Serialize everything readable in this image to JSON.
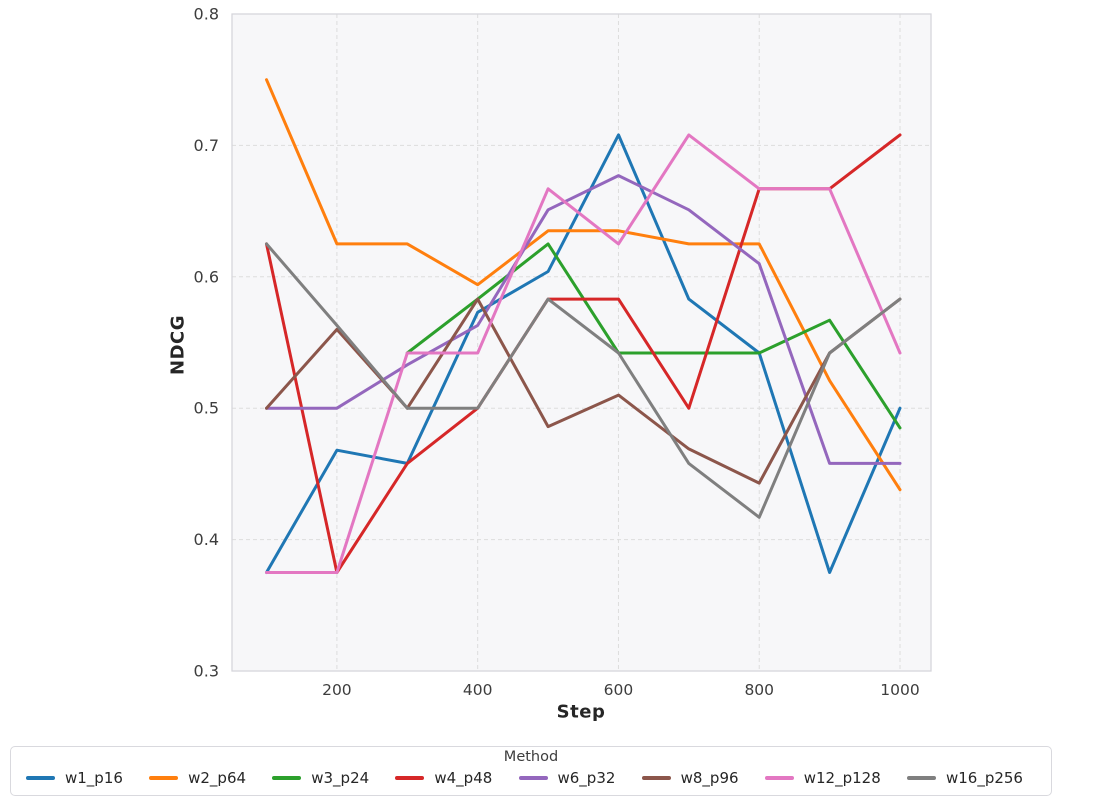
{
  "chart_data": {
    "type": "line",
    "title": "",
    "xlabel": "Step",
    "ylabel": "NDCG",
    "xlim": [
      51,
      1044
    ],
    "ylim": [
      0.3,
      0.8
    ],
    "x_ticks": [
      200,
      400,
      600,
      800,
      1000
    ],
    "y_ticks": [
      0.3,
      0.4,
      0.5,
      0.6,
      0.7,
      0.8
    ],
    "grid": true,
    "grid_style": "dashed",
    "legend": {
      "title": "Method",
      "position": "bottom"
    },
    "series": [
      {
        "name": "w1_p16",
        "color": "#1f77b4",
        "x": [
          100,
          200,
          300,
          400,
          500,
          600,
          700,
          800,
          900,
          1000
        ],
        "y": [
          0.375,
          0.468,
          0.458,
          0.573,
          0.604,
          0.708,
          0.583,
          0.542,
          0.375,
          0.5
        ]
      },
      {
        "name": "w2_p64",
        "color": "#ff7f0e",
        "x": [
          100,
          200,
          300,
          400,
          500,
          600,
          700,
          800,
          900,
          1000
        ],
        "y": [
          0.75,
          0.625,
          0.625,
          0.594,
          0.635,
          0.635,
          0.625,
          0.625,
          0.521,
          0.438
        ]
      },
      {
        "name": "w3_p24",
        "color": "#2ca02c",
        "x": [
          300,
          400,
          500,
          600,
          700,
          800,
          900,
          1000
        ],
        "y": [
          0.542,
          0.583,
          0.625,
          0.542,
          0.542,
          0.542,
          0.567,
          0.485
        ]
      },
      {
        "name": "w4_p48",
        "color": "#d62728",
        "x": [
          100,
          200,
          300,
          400,
          500,
          600,
          700,
          800,
          900,
          1000
        ],
        "y": [
          0.625,
          0.375,
          0.458,
          0.5,
          0.583,
          0.583,
          0.5,
          0.667,
          0.667,
          0.708
        ]
      },
      {
        "name": "w6_p32",
        "color": "#9467bd",
        "x": [
          100,
          200,
          300,
          400,
          500,
          600,
          700,
          800,
          900,
          1000
        ],
        "y": [
          0.5,
          0.5,
          0.533,
          0.563,
          0.651,
          0.677,
          0.651,
          0.61,
          0.458,
          0.458
        ]
      },
      {
        "name": "w8_p96",
        "color": "#8c564b",
        "x": [
          100,
          200,
          300,
          400,
          500,
          600,
          700,
          800,
          900,
          1000
        ],
        "y": [
          0.5,
          0.56,
          0.5,
          0.583,
          0.486,
          0.51,
          0.469,
          0.443,
          0.542,
          0.583
        ]
      },
      {
        "name": "w12_p128",
        "color": "#e377c2",
        "x": [
          100,
          200,
          300,
          400,
          500,
          600,
          700,
          800,
          900,
          1000
        ],
        "y": [
          0.375,
          0.375,
          0.542,
          0.542,
          0.667,
          0.625,
          0.708,
          0.667,
          0.667,
          0.542
        ]
      },
      {
        "name": "w16_p256",
        "color": "#7f7f7f",
        "x": [
          100,
          200,
          300,
          400,
          500,
          600,
          700,
          800,
          900,
          1000
        ],
        "y": [
          0.625,
          0.563,
          0.5,
          0.5,
          0.583,
          0.542,
          0.458,
          0.417,
          0.542,
          0.583
        ]
      }
    ],
    "style": {
      "plot_bg": "#f7f7f9",
      "grid_color": "#dddddd",
      "border_color": "#d6d6db",
      "tick_label_color": "#3d3d3d",
      "axis_label_color": "#262626",
      "line_width": 3
    }
  }
}
